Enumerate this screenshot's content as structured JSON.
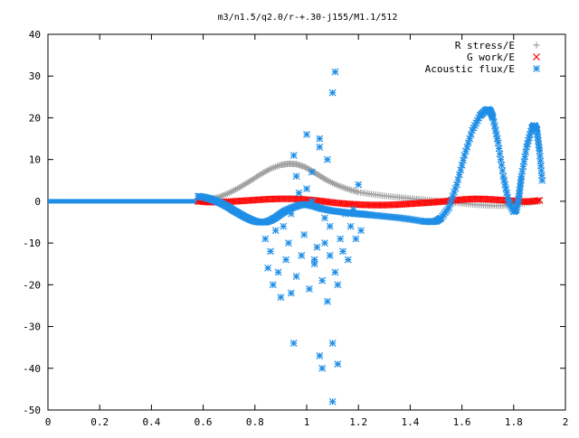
{
  "chart_data": {
    "type": "scatter",
    "title": "m3/n1.5/q2.0/r-+.30-j155/M1.1/512",
    "xlabel": "",
    "ylabel": "",
    "xlim": [
      0,
      2
    ],
    "ylim": [
      -50,
      40
    ],
    "xticks": [
      0,
      0.2,
      0.4,
      0.6,
      0.8,
      1,
      1.2,
      1.4,
      1.6,
      1.8,
      2
    ],
    "xtick_labels": [
      "0",
      "0.2",
      "0.4",
      "0.6",
      "0.8",
      "1",
      "1.2",
      "1.4",
      "1.6",
      "1.8",
      "2"
    ],
    "yticks": [
      -50,
      -40,
      -30,
      -20,
      -10,
      0,
      10,
      20,
      30,
      40
    ],
    "ytick_labels": [
      "-50",
      "-40",
      "-30",
      "-20",
      "-10",
      "0",
      "10",
      "20",
      "30",
      "40"
    ],
    "grid": false,
    "legend_position": "top-right",
    "series": [
      {
        "name": "R stress/E",
        "marker": "plus",
        "color": "#a0a0a0",
        "x": [
          0.58,
          0.62,
          0.66,
          0.7,
          0.74,
          0.78,
          0.82,
          0.86,
          0.9,
          0.93,
          0.96,
          0.99,
          1.02,
          1.05,
          1.08,
          1.12,
          1.16,
          1.2,
          1.25,
          1.3,
          1.35,
          1.4,
          1.45,
          1.5,
          1.55,
          1.6,
          1.65,
          1.7,
          1.75,
          1.8,
          1.85,
          1.9
        ],
        "y": [
          0.3,
          0.5,
          1.0,
          2.0,
          3.3,
          4.8,
          6.4,
          7.8,
          8.7,
          9.0,
          8.9,
          8.3,
          7.3,
          6.1,
          5.0,
          3.8,
          2.9,
          2.2,
          1.7,
          1.3,
          1.0,
          0.7,
          0.4,
          0.1,
          -0.2,
          -0.5,
          -0.8,
          -1.0,
          -1.1,
          -0.8,
          -0.4,
          0.0
        ]
      },
      {
        "name": "G work/E",
        "marker": "cross",
        "color": "#ff0000",
        "x": [
          0.58,
          0.62,
          0.66,
          0.7,
          0.75,
          0.8,
          0.85,
          0.9,
          0.95,
          1.0,
          1.05,
          1.1,
          1.15,
          1.2,
          1.25,
          1.3,
          1.35,
          1.4,
          1.45,
          1.5,
          1.55,
          1.6,
          1.65,
          1.7,
          1.75,
          1.8,
          1.85,
          1.9
        ],
        "y": [
          0.0,
          -0.2,
          -0.2,
          -0.1,
          0.1,
          0.3,
          0.5,
          0.6,
          0.6,
          0.4,
          0.1,
          -0.3,
          -0.6,
          -0.8,
          -0.9,
          -0.9,
          -0.8,
          -0.6,
          -0.4,
          -0.2,
          0.1,
          0.4,
          0.6,
          0.5,
          0.3,
          0.1,
          -0.1,
          0.2
        ]
      },
      {
        "name": "Acoustic flux/E",
        "marker": "star",
        "color": "#1f8ee6",
        "x": [
          0.58,
          0.6,
          0.62,
          0.64,
          0.66,
          0.68,
          0.7,
          0.72,
          0.74,
          0.76,
          0.78,
          0.8,
          0.82,
          0.84,
          0.86,
          0.88,
          0.9,
          0.92,
          0.95,
          0.98,
          1.0,
          1.03,
          1.06,
          1.1,
          1.14,
          1.18,
          1.2,
          1.22,
          1.25,
          1.3,
          1.35,
          1.4,
          1.45,
          1.48,
          1.5,
          1.52,
          1.55,
          1.58,
          1.61,
          1.64,
          1.67,
          1.69,
          1.7,
          1.71,
          1.72,
          1.74,
          1.76,
          1.78,
          1.8,
          1.81,
          1.82,
          1.83,
          1.85,
          1.87,
          1.88,
          1.89,
          1.9,
          1.91
        ],
        "y": [
          1.2,
          1.0,
          0.7,
          0.3,
          -0.2,
          -0.8,
          -1.5,
          -2.3,
          -3.0,
          -3.7,
          -4.3,
          -4.8,
          -5.0,
          -5.0,
          -4.6,
          -3.9,
          -3.0,
          -2.2,
          -1.4,
          -0.8,
          -0.8,
          -1.2,
          -1.8,
          -2.3,
          -2.6,
          -2.9,
          -3.0,
          -3.1,
          -3.3,
          -3.6,
          -3.9,
          -4.3,
          -4.8,
          -4.9,
          -4.8,
          -4.0,
          -1.5,
          4.0,
          11.0,
          17.0,
          20.5,
          21.7,
          22.0,
          21.6,
          20.0,
          14.0,
          6.0,
          0.0,
          -2.5,
          -2.0,
          1.0,
          6.0,
          13.0,
          17.5,
          18.2,
          17.0,
          12.0,
          5.0
        ]
      },
      {
        "name": "",
        "marker": "star",
        "color": "#1f8ee6",
        "x": [
          0.84,
          0.85,
          0.86,
          0.87,
          0.88,
          0.89,
          0.9,
          0.91,
          0.92,
          0.93,
          0.94,
          0.95,
          0.96,
          0.97,
          0.98,
          0.99,
          1.0,
          1.01,
          1.02,
          1.03,
          1.04,
          1.05,
          1.06,
          1.07,
          1.08,
          1.09,
          1.1,
          1.11,
          1.12,
          1.13,
          1.14,
          1.15,
          1.16,
          1.17,
          1.18,
          1.19,
          1.2,
          1.21,
          0.95,
          1.1,
          1.11,
          1.05,
          1.06,
          1.1,
          1.12,
          1.03,
          1.05,
          0.94,
          1.0,
          1.07,
          1.09,
          1.08,
          0.96,
          1.02
        ],
        "y": [
          -9,
          -16,
          -12,
          -20,
          -7,
          -17,
          -23,
          -6,
          -14,
          -10,
          -22,
          11,
          -18,
          2,
          -13,
          -8,
          16,
          -21,
          7,
          -15,
          -11,
          13,
          -19,
          -4,
          -24,
          -6,
          26,
          -17,
          -20,
          -9,
          -12,
          -3,
          -14,
          -6,
          -2,
          -9,
          4,
          -7,
          -34,
          -34,
          31,
          -37,
          -40,
          -48,
          -39,
          -14,
          15,
          -3,
          3,
          -10,
          -13,
          10,
          6,
          0
        ]
      }
    ]
  }
}
